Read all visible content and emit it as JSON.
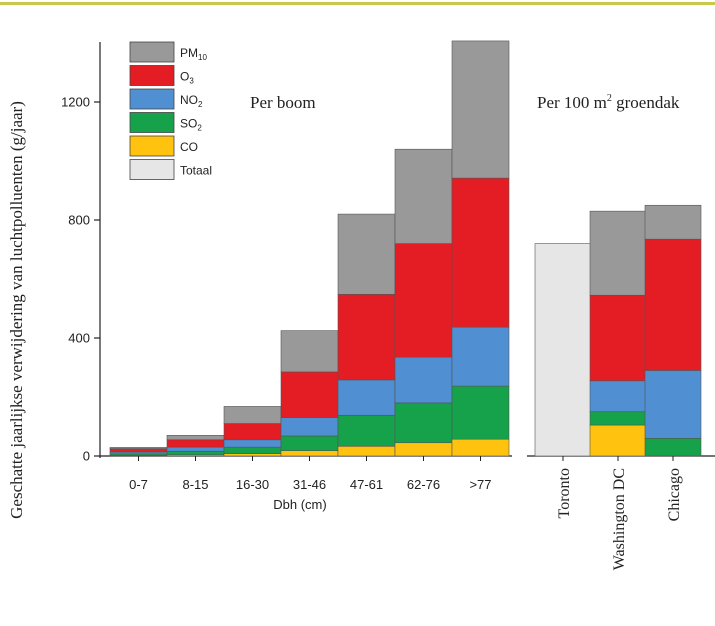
{
  "colors": {
    "accent_rule": "#c8c84a",
    "PM10": "#999999",
    "O3": "#e41c23",
    "NO2": "#4f8fd2",
    "SO2": "#15a24a",
    "CO": "#ffc20e",
    "Totaal": "#e6e6e6",
    "axis": "#222222"
  },
  "chart_data": [
    {
      "type": "stacked-bar",
      "panel_label": "Per boom",
      "ylabel": "Geschatte jaarlijkse verwijdering van luchtpolluenten (g/jaar)",
      "xlabel": "Dbh (cm)",
      "ylim": [
        0,
        1400
      ],
      "yticks": [
        "0",
        "400",
        "800",
        "1200"
      ],
      "categories": [
        "0-7",
        "8-15",
        "16-30",
        "31-46",
        "47-61",
        "62-76",
        ">77"
      ],
      "series": [
        {
          "name": "CO",
          "values": [
            2,
            4,
            8,
            18,
            33,
            45,
            57
          ]
        },
        {
          "name": "SO2",
          "values": [
            5,
            12,
            22,
            50,
            105,
            135,
            180
          ]
        },
        {
          "name": "NO2",
          "values": [
            6,
            14,
            25,
            62,
            120,
            155,
            200
          ]
        },
        {
          "name": "O3",
          "values": [
            12,
            25,
            55,
            155,
            290,
            385,
            505
          ]
        },
        {
          "name": "PM10",
          "values": [
            4,
            15,
            58,
            140,
            272,
            320,
            465
          ]
        }
      ],
      "legend": {
        "placement": "top-left",
        "entries": [
          {
            "key": "PM10",
            "label": "PM",
            "sub": "10"
          },
          {
            "key": "O3",
            "label": "O",
            "sub": "3"
          },
          {
            "key": "NO2",
            "label": "NO",
            "sub": "2"
          },
          {
            "key": "SO2",
            "label": "SO",
            "sub": "2"
          },
          {
            "key": "CO",
            "label": "CO",
            "sub": ""
          },
          {
            "key": "Totaal",
            "label": "Totaal",
            "sub": ""
          }
        ]
      }
    },
    {
      "type": "stacked-bar",
      "panel_label": "Per 100 m² groendak",
      "panel_label_main": "Per 100 m",
      "panel_label_sup": "2",
      "panel_label_rest": " groendak",
      "ylim": [
        0,
        1400
      ],
      "categories": [
        "Toronto",
        "Washington DC",
        "Chicago"
      ],
      "series": [
        {
          "name": "Totaal",
          "values": [
            720,
            0,
            0
          ]
        },
        {
          "name": "CO",
          "values": [
            0,
            105,
            0
          ]
        },
        {
          "name": "SO2",
          "values": [
            0,
            45,
            60
          ]
        },
        {
          "name": "NO2",
          "values": [
            0,
            105,
            230
          ]
        },
        {
          "name": "O3",
          "values": [
            0,
            290,
            445
          ]
        },
        {
          "name": "PM10",
          "values": [
            0,
            285,
            115
          ]
        }
      ]
    }
  ]
}
